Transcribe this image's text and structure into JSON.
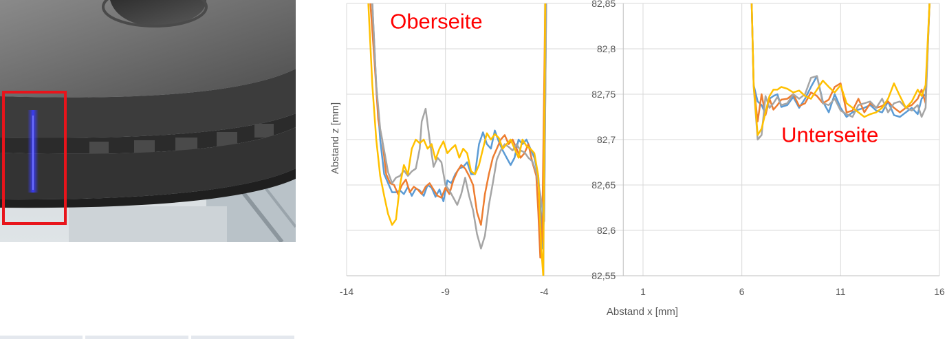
{
  "colors": {
    "series": [
      "#5b9bd5",
      "#ed7d31",
      "#a5a5a5",
      "#ffc000"
    ],
    "annotation": "#ff0000",
    "grid": "#d9d9d9",
    "text": "#595959",
    "marker_box": "#e8141b",
    "laser_line": "#3a3cff"
  },
  "photo": {
    "description_icon": "brake-disc-photo-icon"
  },
  "chart_data": {
    "type": "line",
    "xlabel": "Abstand x [mm]",
    "ylabel": "Abstand z [mm]",
    "xlim": [
      -14,
      16
    ],
    "ylim": [
      82.55,
      82.85
    ],
    "x_ticks": [
      "-14",
      "-9",
      "-4",
      "1",
      "6",
      "11",
      "16"
    ],
    "y_ticks": [
      "82,55",
      "82,6",
      "82,65",
      "82,7",
      "82,75",
      "82,8",
      "82,85"
    ],
    "grid": true,
    "annotations": [
      {
        "text": "Oberseite",
        "x": -11.8,
        "y": 82.83
      },
      {
        "text": "Unterseite",
        "x": 8.0,
        "y": 82.705
      }
    ],
    "series": [
      {
        "x": [
          -12.7,
          -12.5,
          -12.3,
          -12.1,
          -11.9,
          -11.7,
          -11.5,
          -11.3,
          -11.1,
          -10.9,
          -10.7,
          -10.5,
          -10.3,
          -10.1,
          -9.9,
          -9.7,
          -9.5,
          -9.3,
          -9.1,
          -8.9,
          -8.7,
          -8.5,
          -8.3,
          -8.1,
          -7.9,
          -7.7,
          -7.5,
          -7.3,
          -7.1,
          -6.9,
          -6.7,
          -6.5,
          -6.3,
          -6.1,
          -5.9,
          -5.7,
          -5.5,
          -5.3,
          -5.1,
          -4.9,
          -4.7,
          -4.5,
          -4.3,
          -4.2,
          -4.1,
          -4.0,
          -3.9,
          null,
          6.5,
          6.6,
          6.8,
          7.0,
          7.2,
          7.4,
          7.6,
          7.8,
          8.0,
          8.3,
          8.6,
          8.9,
          9.2,
          9.5,
          9.8,
          10.1,
          10.4,
          10.7,
          11.0,
          11.3,
          11.6,
          11.9,
          12.2,
          12.5,
          12.8,
          13.1,
          13.4,
          13.7,
          14.0,
          14.3,
          14.6,
          14.9,
          15.1,
          15.3,
          15.5
        ],
        "y": [
          82.85,
          82.76,
          82.7,
          82.662,
          82.652,
          82.642,
          82.642,
          82.644,
          82.64,
          82.648,
          82.638,
          82.646,
          82.644,
          82.638,
          82.65,
          82.647,
          82.637,
          82.645,
          82.632,
          82.655,
          82.652,
          82.662,
          82.668,
          82.67,
          82.675,
          82.662,
          82.662,
          82.695,
          82.708,
          82.695,
          82.69,
          82.71,
          82.698,
          82.688,
          82.68,
          82.672,
          82.68,
          82.7,
          82.695,
          82.7,
          82.69,
          82.68,
          82.66,
          82.63,
          82.58,
          82.62,
          82.85,
          null,
          82.85,
          82.76,
          82.742,
          82.738,
          82.728,
          82.745,
          82.748,
          82.75,
          82.736,
          82.738,
          82.747,
          82.735,
          82.745,
          82.758,
          82.77,
          82.742,
          82.73,
          82.75,
          82.735,
          82.725,
          82.73,
          82.733,
          82.735,
          82.738,
          82.732,
          82.73,
          82.742,
          82.727,
          82.725,
          82.73,
          82.735,
          82.728,
          82.745,
          82.75,
          82.85
        ]
      },
      {
        "x": [
          -12.8,
          -12.6,
          -12.4,
          -12.2,
          -12.0,
          -11.8,
          -11.6,
          -11.4,
          -11.2,
          -11.0,
          -10.8,
          -10.6,
          -10.4,
          -10.2,
          -10.0,
          -9.8,
          -9.6,
          -9.4,
          -9.2,
          -9.0,
          -8.8,
          -8.6,
          -8.4,
          -8.2,
          -8.0,
          -7.8,
          -7.6,
          -7.4,
          -7.2,
          -7.0,
          -6.8,
          -6.6,
          -6.4,
          -6.2,
          -6.0,
          -5.8,
          -5.6,
          -5.4,
          -5.2,
          -5.0,
          -4.8,
          -4.6,
          -4.4,
          -4.3,
          -4.2,
          -4.1,
          -3.95,
          null,
          6.5,
          6.6,
          6.8,
          7.0,
          7.2,
          7.4,
          7.6,
          7.8,
          8.0,
          8.3,
          8.6,
          8.9,
          9.2,
          9.5,
          9.8,
          10.1,
          10.4,
          10.7,
          11.0,
          11.3,
          11.6,
          11.9,
          12.2,
          12.5,
          12.8,
          13.1,
          13.4,
          13.7,
          14.0,
          14.3,
          14.6,
          14.9,
          15.1,
          15.3,
          15.5
        ],
        "y": [
          82.85,
          82.79,
          82.722,
          82.7,
          82.662,
          82.652,
          82.65,
          82.64,
          82.65,
          82.656,
          82.642,
          82.648,
          82.645,
          82.64,
          82.648,
          82.652,
          82.645,
          82.638,
          82.636,
          82.647,
          82.64,
          82.655,
          82.665,
          82.672,
          82.668,
          82.66,
          82.65,
          82.62,
          82.606,
          82.64,
          82.662,
          82.68,
          82.69,
          82.7,
          82.705,
          82.695,
          82.7,
          82.69,
          82.68,
          82.685,
          82.695,
          82.675,
          82.66,
          82.62,
          82.57,
          82.6,
          82.85,
          null,
          82.85,
          82.76,
          82.72,
          82.75,
          82.727,
          82.745,
          82.733,
          82.738,
          82.744,
          82.745,
          82.75,
          82.737,
          82.74,
          82.752,
          82.748,
          82.74,
          82.744,
          82.758,
          82.762,
          82.73,
          82.732,
          82.745,
          82.73,
          82.74,
          82.735,
          82.737,
          82.742,
          82.735,
          82.73,
          82.735,
          82.738,
          82.745,
          82.755,
          82.74,
          82.85
        ]
      },
      {
        "x": [
          -12.7,
          -12.5,
          -12.3,
          -12.1,
          -11.9,
          -11.7,
          -11.5,
          -11.3,
          -11.1,
          -10.9,
          -10.7,
          -10.5,
          -10.3,
          -10.2,
          -10.0,
          -9.8,
          -9.6,
          -9.4,
          -9.2,
          -9.0,
          -8.8,
          -8.6,
          -8.4,
          -8.2,
          -8.0,
          -7.8,
          -7.6,
          -7.4,
          -7.2,
          -7.0,
          -6.8,
          -6.6,
          -6.4,
          -6.2,
          -6.0,
          -5.8,
          -5.6,
          -5.4,
          -5.2,
          -5.0,
          -4.8,
          -4.6,
          -4.4,
          -4.2,
          -4.0,
          -3.9,
          null,
          6.5,
          6.6,
          6.8,
          7.0,
          7.2,
          7.4,
          7.6,
          7.8,
          8.0,
          8.3,
          8.6,
          8.9,
          9.2,
          9.5,
          9.8,
          10.1,
          10.4,
          10.7,
          11.0,
          11.3,
          11.6,
          11.9,
          12.2,
          12.5,
          12.8,
          13.1,
          13.4,
          13.7,
          14.0,
          14.3,
          14.6,
          14.9,
          15.1,
          15.3,
          15.5
        ],
        "y": [
          82.85,
          82.76,
          82.712,
          82.688,
          82.664,
          82.652,
          82.658,
          82.66,
          82.666,
          82.66,
          82.665,
          82.668,
          82.69,
          82.72,
          82.734,
          82.7,
          82.67,
          82.68,
          82.675,
          82.65,
          82.644,
          82.636,
          82.628,
          82.64,
          82.658,
          82.638,
          82.622,
          82.596,
          82.58,
          82.594,
          82.628,
          82.652,
          82.678,
          82.688,
          82.695,
          82.692,
          82.688,
          82.695,
          82.688,
          82.686,
          82.68,
          82.676,
          82.664,
          82.64,
          82.61,
          82.85,
          null,
          82.85,
          82.758,
          82.7,
          82.705,
          82.748,
          82.735,
          82.74,
          82.747,
          82.738,
          82.74,
          82.75,
          82.745,
          82.75,
          82.768,
          82.77,
          82.74,
          82.738,
          82.745,
          82.732,
          82.728,
          82.725,
          82.738,
          82.74,
          82.742,
          82.735,
          82.745,
          82.73,
          82.74,
          82.742,
          82.735,
          82.732,
          82.738,
          82.725,
          82.735,
          82.85
        ]
      },
      {
        "x": [
          -12.9,
          -12.7,
          -12.5,
          -12.3,
          -12.1,
          -11.9,
          -11.7,
          -11.5,
          -11.3,
          -11.1,
          -10.9,
          -10.7,
          -10.5,
          -10.3,
          -10.1,
          -9.9,
          -9.7,
          -9.5,
          -9.3,
          -9.1,
          -8.9,
          -8.7,
          -8.5,
          -8.3,
          -8.1,
          -7.9,
          -7.7,
          -7.5,
          -7.3,
          -7.1,
          -6.9,
          -6.7,
          -6.5,
          -6.3,
          -6.1,
          -5.9,
          -5.7,
          -5.5,
          -5.3,
          -5.1,
          -4.9,
          -4.7,
          -4.5,
          -4.3,
          -4.15,
          -4.05,
          -3.95,
          null,
          6.5,
          6.6,
          6.8,
          7.0,
          7.2,
          7.4,
          7.6,
          7.8,
          8.0,
          8.3,
          8.6,
          8.9,
          9.2,
          9.5,
          9.8,
          10.1,
          10.4,
          10.7,
          11.0,
          11.3,
          11.6,
          11.9,
          12.2,
          12.5,
          12.8,
          13.1,
          13.4,
          13.7,
          14.0,
          14.3,
          14.6,
          14.9,
          15.1,
          15.3,
          15.5
        ],
        "y": [
          82.85,
          82.76,
          82.7,
          82.66,
          82.638,
          82.618,
          82.606,
          82.612,
          82.65,
          82.672,
          82.662,
          82.69,
          82.7,
          82.696,
          82.7,
          82.69,
          82.695,
          82.678,
          82.69,
          82.698,
          82.685,
          82.69,
          82.694,
          82.68,
          82.69,
          82.685,
          82.665,
          82.662,
          82.672,
          82.69,
          82.707,
          82.7,
          82.706,
          82.702,
          82.69,
          82.695,
          82.7,
          82.69,
          82.68,
          82.7,
          82.693,
          82.69,
          82.685,
          82.66,
          82.58,
          82.55,
          82.85,
          null,
          82.85,
          82.76,
          82.705,
          82.712,
          82.73,
          82.748,
          82.755,
          82.755,
          82.758,
          82.756,
          82.752,
          82.754,
          82.748,
          82.745,
          82.755,
          82.765,
          82.758,
          82.752,
          82.76,
          82.74,
          82.735,
          82.73,
          82.725,
          82.728,
          82.73,
          82.735,
          82.745,
          82.762,
          82.748,
          82.735,
          82.742,
          82.755,
          82.748,
          82.76,
          82.85
        ]
      }
    ]
  }
}
